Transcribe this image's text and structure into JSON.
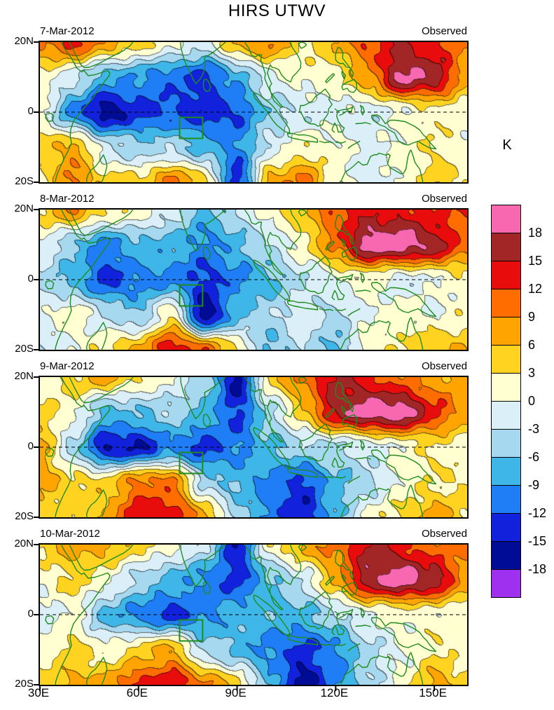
{
  "title": "HIRS UTWV",
  "unit_label": "K",
  "panels": [
    {
      "date": "7-Mar-2012",
      "source": "Observed"
    },
    {
      "date": "8-Mar-2012",
      "source": "Observed"
    },
    {
      "date": "9-Mar-2012",
      "source": "Observed"
    },
    {
      "date": "10-Mar-2012",
      "source": "Observed"
    }
  ],
  "axes": {
    "x_tick_labels": [
      "30E",
      "60E",
      "90E",
      "120E",
      "150E"
    ],
    "x_tick_lons": [
      30,
      60,
      90,
      120,
      150
    ],
    "y_tick_labels": [
      "20N",
      "0",
      "20S"
    ],
    "y_tick_lats": [
      20,
      0,
      -20
    ],
    "lon_min": 30,
    "lon_max": 160,
    "lat_min": -20,
    "lat_max": 20
  },
  "colorbar": {
    "unit": "K",
    "tick_labels": [
      "18",
      "15",
      "12",
      "9",
      "6",
      "3",
      "0",
      "-3",
      "-6",
      "-9",
      "-12",
      "-15",
      "-18"
    ],
    "levels": [
      -18,
      -15,
      -12,
      -9,
      -6,
      -3,
      0,
      3,
      6,
      9,
      12,
      15,
      18
    ],
    "colors_low_to_high": [
      "#a030f0",
      "#000c96",
      "#1222dc",
      "#1f7df5",
      "#3eb6e8",
      "#a6d8f0",
      "#dbeff8",
      "#ffffd2",
      "#ffd320",
      "#ffa400",
      "#ff6d00",
      "#e80c0c",
      "#a32626",
      "#f768b0"
    ]
  },
  "map": {
    "coast_color": "#1e8c1e",
    "study_box": {
      "lon_min": 72.5,
      "lon_max": 79.5,
      "lat_min": -7.5,
      "lat_max": -1.5
    }
  },
  "chart_data": {
    "type": "heatmap",
    "title": "HIRS UTWV",
    "unit": "K",
    "note": "Upper-tropospheric water vapor brightness-temperature anomaly (K), approximate values read from filled contours",
    "grid_lons": [
      30,
      40,
      50,
      60,
      70,
      80,
      90,
      100,
      110,
      120,
      130,
      140,
      150,
      160
    ],
    "grid_lats": [
      20,
      10,
      0,
      -10,
      -20
    ],
    "levels": [
      -18,
      -15,
      -12,
      -9,
      -6,
      -3,
      0,
      3,
      6,
      9,
      12,
      15,
      18
    ],
    "panels": [
      {
        "date": "7-Mar-2012",
        "label": "Observed",
        "values": [
          [
            9,
            13,
            8,
            4,
            1,
            -2,
            7,
            9,
            3,
            6,
            12,
            15,
            13,
            9
          ],
          [
            2,
            -2,
            -8,
            -9,
            -11,
            -13,
            -8,
            -1,
            1,
            2,
            8,
            19,
            17,
            7
          ],
          [
            1,
            -10,
            -17,
            -13,
            -12,
            -14,
            -12,
            -5,
            -2,
            -1,
            -2,
            0,
            2,
            1
          ],
          [
            4,
            7,
            -2,
            -5,
            -4,
            -7,
            -10,
            -2,
            2,
            1,
            -1,
            1,
            3,
            1
          ],
          [
            2,
            10,
            4,
            4,
            10,
            4,
            -14,
            7,
            10,
            1,
            -2,
            1,
            4,
            3
          ]
        ]
      },
      {
        "date": "8-Mar-2012",
        "label": "Observed",
        "values": [
          [
            4,
            9,
            3,
            2,
            -2,
            -7,
            -3,
            2,
            5,
            12,
            14,
            14,
            12,
            12
          ],
          [
            0,
            -6,
            -10,
            -7,
            -7,
            -10,
            -7,
            -3,
            2,
            10,
            20,
            20,
            17,
            10
          ],
          [
            -4,
            -7,
            -13,
            -10,
            -10,
            -13,
            -10,
            -7,
            -3,
            0,
            1,
            -2,
            0,
            2
          ],
          [
            0,
            2,
            -3,
            -6,
            3,
            -17,
            -7,
            -4,
            -1,
            -4,
            0,
            2,
            0,
            2
          ],
          [
            -3,
            0,
            3,
            7,
            14,
            11,
            3,
            -7,
            -3,
            -7,
            2,
            3,
            6,
            6
          ]
        ]
      },
      {
        "date": "9-Mar-2012",
        "label": "Observed",
        "values": [
          [
            1,
            4,
            7,
            3,
            0,
            -4,
            -16,
            4,
            10,
            16,
            13,
            10,
            7,
            7
          ],
          [
            4,
            1,
            -7,
            -6,
            -4,
            -7,
            -13,
            -4,
            5,
            16,
            20,
            20,
            13,
            7
          ],
          [
            7,
            -4,
            -15,
            -15,
            -10,
            -13,
            -10,
            -7,
            -4,
            -4,
            -2,
            1,
            3,
            1
          ],
          [
            7,
            4,
            4,
            10,
            10,
            -4,
            -7,
            -10,
            -13,
            -7,
            -4,
            1,
            3,
            3
          ],
          [
            4,
            4,
            7,
            14,
            14,
            7,
            -4,
            -10,
            -15,
            -7,
            1,
            4,
            7,
            4
          ]
        ]
      },
      {
        "date": "10-Mar-2012",
        "label": "Observed",
        "values": [
          [
            4,
            7,
            7,
            4,
            1,
            -2,
            -15,
            2,
            7,
            10,
            16,
            13,
            10,
            10
          ],
          [
            1,
            4,
            1,
            -4,
            -7,
            -10,
            -13,
            -7,
            -2,
            7,
            17,
            20,
            17,
            7
          ],
          [
            -2,
            1,
            -7,
            -10,
            -13,
            -10,
            -7,
            -7,
            -7,
            -4,
            0,
            1,
            1,
            1
          ],
          [
            1,
            4,
            1,
            4,
            7,
            -4,
            -7,
            -10,
            -13,
            -10,
            -4,
            0,
            3,
            1
          ],
          [
            4,
            7,
            7,
            13,
            14,
            10,
            4,
            -7,
            -17,
            -10,
            -4,
            1,
            7,
            4
          ]
        ]
      }
    ]
  }
}
